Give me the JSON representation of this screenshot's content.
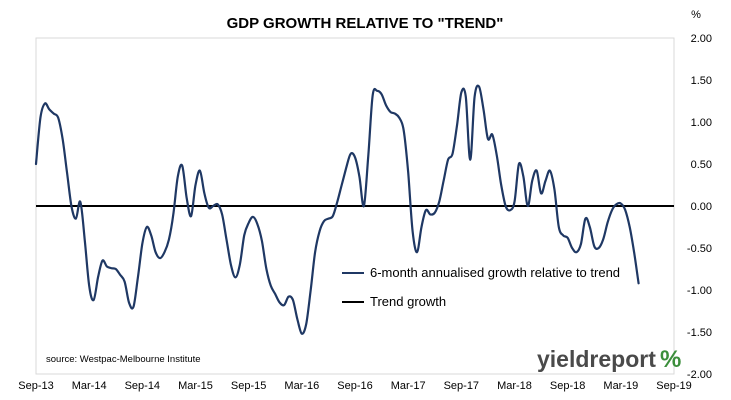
{
  "chart_data": {
    "type": "line",
    "title": "GDP GROWTH RELATIVE TO \"TREND\"",
    "y_unit_label": "%",
    "ylim": [
      -2.0,
      2.0
    ],
    "y_ticks": [
      "2.00",
      "1.50",
      "1.00",
      "0.50",
      "0.00",
      "-0.50",
      "-1.00",
      "-1.50",
      "-2.00"
    ],
    "y_tick_values": [
      2.0,
      1.5,
      1.0,
      0.5,
      0.0,
      -0.5,
      -1.0,
      -1.5,
      -2.0
    ],
    "xlim": [
      0,
      72
    ],
    "x_ticks": [
      {
        "label": "Sep-13",
        "x": 0
      },
      {
        "label": "Mar-14",
        "x": 6
      },
      {
        "label": "Sep-14",
        "x": 12
      },
      {
        "label": "Mar-15",
        "x": 18
      },
      {
        "label": "Sep-15",
        "x": 24
      },
      {
        "label": "Mar-16",
        "x": 30
      },
      {
        "label": "Sep-16",
        "x": 36
      },
      {
        "label": "Mar-17",
        "x": 42
      },
      {
        "label": "Sep-17",
        "x": 48
      },
      {
        "label": "Mar-18",
        "x": 54
      },
      {
        "label": "Sep-18",
        "x": 60
      },
      {
        "label": "Mar-19",
        "x": 66
      },
      {
        "label": "Sep-19",
        "x": 72
      }
    ],
    "grid": false,
    "legend_position": "center-right",
    "series": [
      {
        "name": "6-month annualised growth relative to trend",
        "color": "#1f3864",
        "points": [
          [
            0,
            0.5
          ],
          [
            0.5,
            1.05
          ],
          [
            1,
            1.22
          ],
          [
            1.5,
            1.15
          ],
          [
            2,
            1.1
          ],
          [
            2.5,
            1.05
          ],
          [
            3,
            0.8
          ],
          [
            3.5,
            0.4
          ],
          [
            4,
            0.0
          ],
          [
            4.5,
            -0.15
          ],
          [
            5,
            0.05
          ],
          [
            5.5,
            -0.4
          ],
          [
            6,
            -0.95
          ],
          [
            6.5,
            -1.12
          ],
          [
            7,
            -0.85
          ],
          [
            7.5,
            -0.65
          ],
          [
            8,
            -0.72
          ],
          [
            8.5,
            -0.74
          ],
          [
            9,
            -0.75
          ],
          [
            9.5,
            -0.82
          ],
          [
            10,
            -0.9
          ],
          [
            10.5,
            -1.15
          ],
          [
            11,
            -1.2
          ],
          [
            11.5,
            -0.85
          ],
          [
            12,
            -0.45
          ],
          [
            12.5,
            -0.25
          ],
          [
            13,
            -0.35
          ],
          [
            13.5,
            -0.55
          ],
          [
            14,
            -0.62
          ],
          [
            14.5,
            -0.55
          ],
          [
            15,
            -0.4
          ],
          [
            15.5,
            -0.1
          ],
          [
            16,
            0.35
          ],
          [
            16.5,
            0.48
          ],
          [
            17,
            0.1
          ],
          [
            17.5,
            -0.12
          ],
          [
            18,
            0.25
          ],
          [
            18.5,
            0.42
          ],
          [
            19,
            0.15
          ],
          [
            19.5,
            -0.02
          ],
          [
            20,
            0.0
          ],
          [
            20.5,
            0.02
          ],
          [
            21,
            -0.1
          ],
          [
            21.5,
            -0.4
          ],
          [
            22,
            -0.7
          ],
          [
            22.5,
            -0.85
          ],
          [
            23,
            -0.7
          ],
          [
            23.5,
            -0.35
          ],
          [
            24,
            -0.2
          ],
          [
            24.5,
            -0.13
          ],
          [
            25,
            -0.22
          ],
          [
            25.5,
            -0.42
          ],
          [
            26,
            -0.75
          ],
          [
            26.5,
            -0.95
          ],
          [
            27,
            -1.05
          ],
          [
            27.5,
            -1.15
          ],
          [
            28,
            -1.18
          ],
          [
            28.5,
            -1.08
          ],
          [
            29,
            -1.12
          ],
          [
            29.5,
            -1.35
          ],
          [
            30,
            -1.52
          ],
          [
            30.5,
            -1.4
          ],
          [
            31,
            -1.0
          ],
          [
            31.5,
            -0.55
          ],
          [
            32,
            -0.3
          ],
          [
            32.5,
            -0.18
          ],
          [
            33,
            -0.15
          ],
          [
            33.5,
            -0.12
          ],
          [
            34,
            0.05
          ],
          [
            34.5,
            0.25
          ],
          [
            35,
            0.45
          ],
          [
            35.5,
            0.62
          ],
          [
            36,
            0.58
          ],
          [
            36.5,
            0.35
          ],
          [
            37,
            0.0
          ],
          [
            37.5,
            0.6
          ],
          [
            38,
            1.32
          ],
          [
            38.5,
            1.37
          ],
          [
            39,
            1.33
          ],
          [
            39.5,
            1.2
          ],
          [
            40,
            1.12
          ],
          [
            40.5,
            1.1
          ],
          [
            41,
            1.05
          ],
          [
            41.5,
            0.9
          ],
          [
            42,
            0.4
          ],
          [
            42.5,
            -0.3
          ],
          [
            43,
            -0.55
          ],
          [
            43.5,
            -0.25
          ],
          [
            44,
            -0.05
          ],
          [
            44.5,
            -0.1
          ],
          [
            45,
            -0.08
          ],
          [
            45.5,
            0.05
          ],
          [
            46,
            0.3
          ],
          [
            46.5,
            0.55
          ],
          [
            47,
            0.62
          ],
          [
            47.5,
            0.95
          ],
          [
            48,
            1.35
          ],
          [
            48.5,
            1.3
          ],
          [
            49,
            0.55
          ],
          [
            49.5,
            1.3
          ],
          [
            50,
            1.42
          ],
          [
            50.5,
            1.15
          ],
          [
            51,
            0.8
          ],
          [
            51.5,
            0.85
          ],
          [
            52,
            0.6
          ],
          [
            52.5,
            0.25
          ],
          [
            53,
            0.0
          ],
          [
            53.5,
            -0.05
          ],
          [
            54,
            0.05
          ],
          [
            54.5,
            0.5
          ],
          [
            55,
            0.35
          ],
          [
            55.5,
            0.0
          ],
          [
            56,
            0.3
          ],
          [
            56.5,
            0.42
          ],
          [
            57,
            0.15
          ],
          [
            57.5,
            0.3
          ],
          [
            58,
            0.42
          ],
          [
            58.5,
            0.2
          ],
          [
            59,
            -0.25
          ],
          [
            59.5,
            -0.35
          ],
          [
            60,
            -0.38
          ],
          [
            60.5,
            -0.5
          ],
          [
            61,
            -0.55
          ],
          [
            61.5,
            -0.45
          ],
          [
            62,
            -0.15
          ],
          [
            62.5,
            -0.25
          ],
          [
            63,
            -0.48
          ],
          [
            63.5,
            -0.5
          ],
          [
            64,
            -0.4
          ],
          [
            64.5,
            -0.2
          ],
          [
            65,
            -0.05
          ],
          [
            65.5,
            0.02
          ],
          [
            66,
            0.03
          ],
          [
            66.5,
            -0.05
          ],
          [
            67,
            -0.25
          ],
          [
            67.5,
            -0.55
          ],
          [
            68,
            -0.92
          ]
        ]
      },
      {
        "name": "Trend growth",
        "color": "#000000",
        "points": [
          [
            0,
            0.0
          ],
          [
            72,
            0.0
          ]
        ]
      }
    ],
    "source": "source: Westpac-Melbourne Institute"
  },
  "branding": {
    "logo_text": "yieldreport",
    "logo_symbol": "%",
    "logo_color": "#4a4a4a",
    "logo_accent": "#3b8e3b"
  }
}
